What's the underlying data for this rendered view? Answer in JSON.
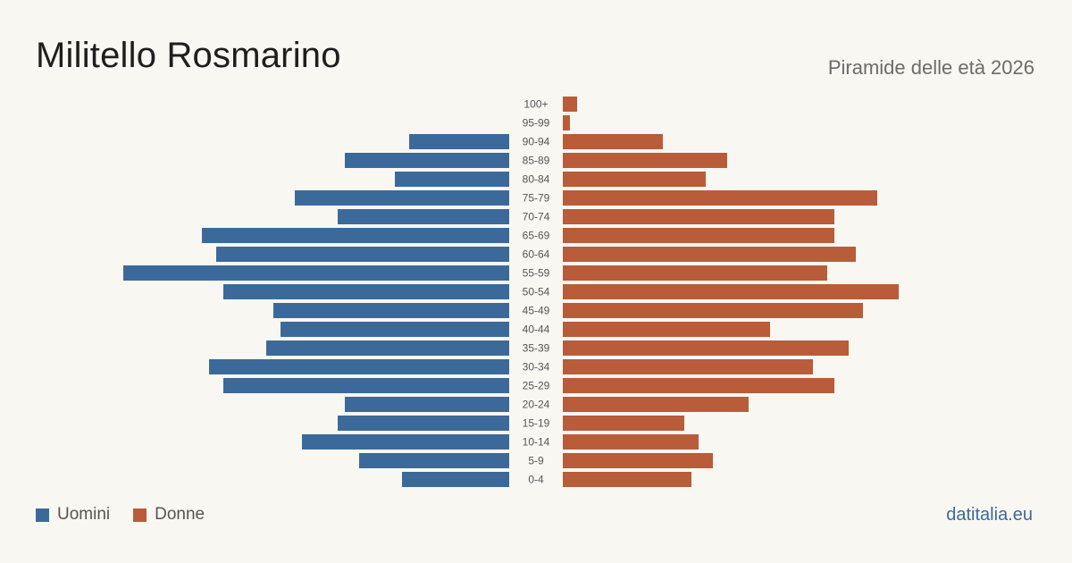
{
  "header": {
    "title": "Militello Rosmarino",
    "subtitle": "Piramide delle età 2026"
  },
  "legend": {
    "men_label": "Uomini",
    "women_label": "Donne"
  },
  "footer": {
    "brand": "datitalia.eu"
  },
  "colors": {
    "men": "#3b6a9a",
    "women": "#b95c3a",
    "background": "#f9f7f2"
  },
  "chart_data": {
    "type": "bar",
    "orientation": "horizontal-pyramid",
    "title": "Militello Rosmarino",
    "subtitle": "Piramide delle età 2026",
    "categories": [
      "100+",
      "95-99",
      "90-94",
      "85-89",
      "80-84",
      "75-79",
      "70-74",
      "65-69",
      "60-64",
      "55-59",
      "50-54",
      "45-49",
      "40-44",
      "35-39",
      "30-34",
      "25-29",
      "20-24",
      "15-19",
      "10-14",
      "5-9",
      "0-4"
    ],
    "series": [
      {
        "name": "Uomini",
        "values": [
          0,
          0,
          14,
          23,
          16,
          30,
          24,
          43,
          41,
          54,
          40,
          33,
          32,
          34,
          42,
          40,
          23,
          24,
          29,
          21,
          15
        ]
      },
      {
        "name": "Donne",
        "values": [
          2,
          1,
          14,
          23,
          20,
          44,
          38,
          38,
          41,
          37,
          47,
          42,
          29,
          40,
          35,
          38,
          26,
          17,
          19,
          21,
          18
        ]
      }
    ],
    "legend_position": "bottom-left",
    "grid": false
  }
}
